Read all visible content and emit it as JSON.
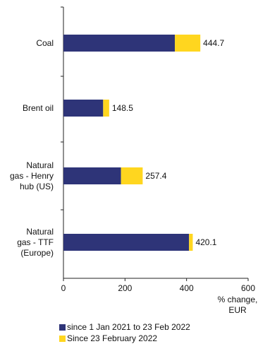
{
  "chart_data": {
    "type": "bar",
    "orientation": "horizontal",
    "stacked": true,
    "categories": [
      [
        "Coal"
      ],
      [
        "Brent oil"
      ],
      [
        "Natural",
        "gas - Henry",
        "hub (US)"
      ],
      [
        "Natural",
        "gas - TTF",
        "(Europe)"
      ]
    ],
    "series": [
      {
        "name": "since 1 Jan 2021 to 23 Feb 2022",
        "color": "#2e3478",
        "values": [
          362,
          129,
          187,
          408
        ]
      },
      {
        "name": "Since 23 February 2022",
        "color": "#ffd61f",
        "values": [
          82.7,
          19.5,
          70.4,
          12.1
        ]
      }
    ],
    "totals": [
      "444.7",
      "148.5",
      "257.4",
      "420.1"
    ],
    "xlim": [
      0,
      600
    ],
    "xticks": [
      0,
      200,
      400,
      600
    ],
    "xlabel": [
      "% change,",
      "EUR"
    ],
    "grid": false,
    "legend_position": "bottom-left"
  }
}
